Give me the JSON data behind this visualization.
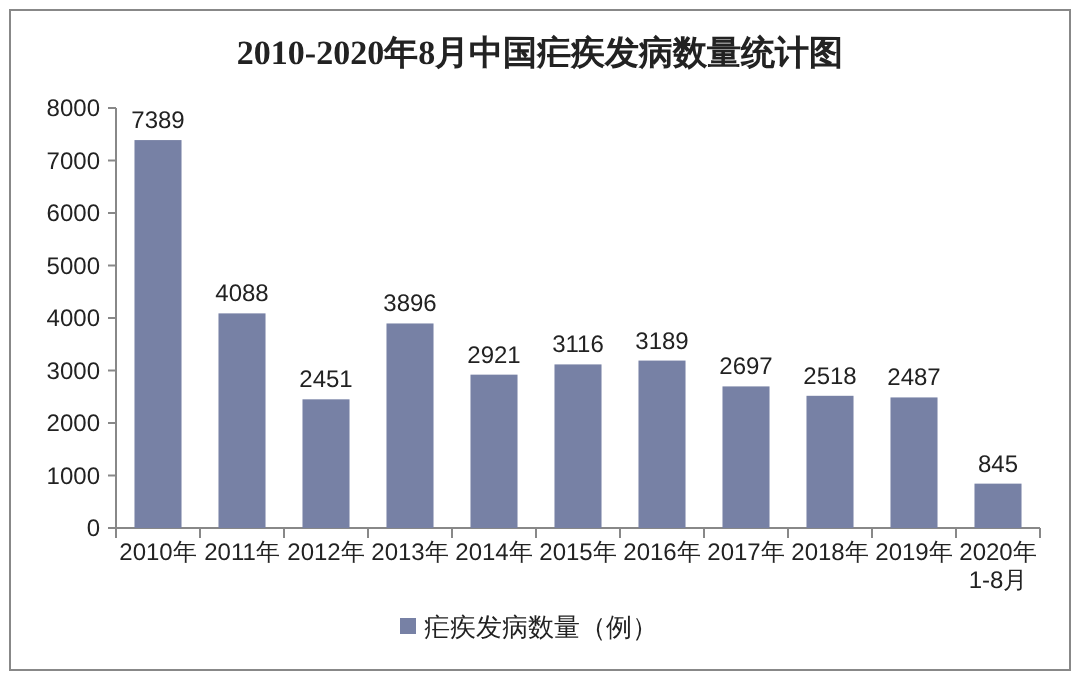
{
  "chart_data": {
    "type": "bar",
    "title": "2010-2020年8月中国疟疾发病数量统计图",
    "categories": [
      "2010年",
      "2011年",
      "2012年",
      "2013年",
      "2014年",
      "2015年",
      "2016年",
      "2017年",
      "2018年",
      "2019年",
      "2020年\n1-8月"
    ],
    "series": [
      {
        "name": "疟疾发病数量（例）",
        "color": "#7781a5",
        "values": [
          7389,
          4088,
          2451,
          3896,
          2921,
          3116,
          3189,
          2697,
          2518,
          2487,
          845
        ]
      }
    ],
    "ylim": [
      0,
      8000
    ],
    "yticks": [
      0,
      1000,
      2000,
      3000,
      4000,
      5000,
      6000,
      7000,
      8000
    ],
    "data_labels": true,
    "legend": "bottom"
  }
}
